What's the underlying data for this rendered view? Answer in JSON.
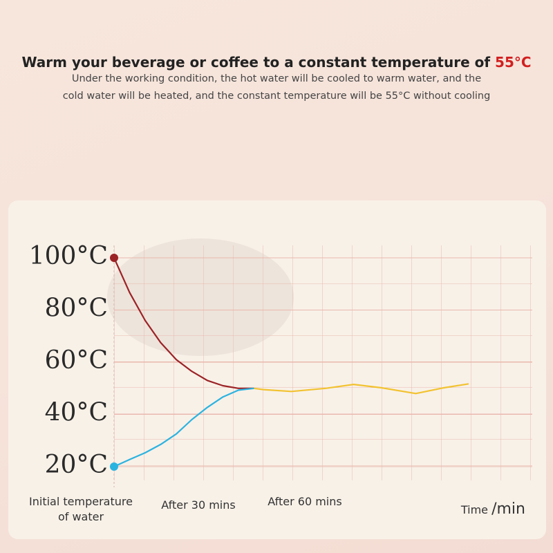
{
  "chart_data": {
    "type": "line",
    "title": "Warm your beverage or coffee to a constant temperature of",
    "title_highlight": "55°C",
    "subtitle": [
      "Under the working condition, the hot water will be cooled to warm water, and the",
      "cold water will be heated, and the constant temperature will be 55°C without cooling"
    ],
    "xlabel": "Time",
    "xunit": "/min",
    "xlim": [
      0,
      120
    ],
    "xticks": [
      {
        "value": 0,
        "label": "Initial temperature of water"
      },
      {
        "value": 30,
        "label": "After 30 mins"
      },
      {
        "value": 60,
        "label": "After 60 mins"
      }
    ],
    "ylim": [
      20,
      100
    ],
    "yticks": [
      {
        "value": 100,
        "label": "100°C"
      },
      {
        "value": 80,
        "label": "80°C"
      },
      {
        "value": 60,
        "label": "60°C"
      },
      {
        "value": 40,
        "label": "40°C"
      },
      {
        "value": 20,
        "label": "20°C"
      }
    ],
    "grid": true,
    "series": [
      {
        "color": "#9b2226",
        "x": [
          0,
          5,
          10,
          15,
          20,
          25,
          30,
          35,
          40,
          45
        ],
        "values": [
          100,
          86.7,
          76,
          67.5,
          61,
          56.5,
          53,
          51,
          50,
          50
        ]
      },
      {
        "color": "#2bb3e0",
        "x": [
          0,
          5,
          10,
          15,
          20,
          25,
          30,
          35,
          40,
          45
        ],
        "values": [
          20,
          22.7,
          25.3,
          28.5,
          32.5,
          38,
          42.7,
          46.7,
          49.3,
          50
        ]
      },
      {
        "color": "#f2c230",
        "x": [
          45,
          48,
          57,
          68,
          77,
          86,
          97,
          106,
          114
        ],
        "values": [
          50,
          49.5,
          48.8,
          50,
          51.5,
          50.2,
          48,
          50.2,
          51.7
        ]
      }
    ]
  }
}
